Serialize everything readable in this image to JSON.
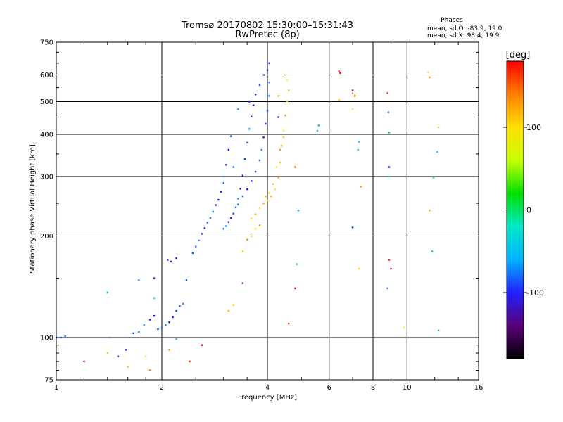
{
  "chart_data": {
    "type": "scatter",
    "title": "Tromsø 20170802 15:30:00–15:31:43",
    "subtitle": "RwPretec (8p)",
    "xlabel": "Frequency [MHz]",
    "ylabel": "Stationary phase Virtual Height [km]",
    "x_scale": "log",
    "y_scale": "log",
    "xlim": [
      1,
      16
    ],
    "ylim": [
      75,
      750
    ],
    "x_ticks": [
      1,
      2,
      4,
      6,
      8,
      10,
      16
    ],
    "y_ticks": [
      75,
      100,
      200,
      300,
      400,
      500,
      600,
      750
    ],
    "grid": true,
    "stats_header": "Phases",
    "stats_lines": [
      "mean, sd,O: -83.9, 19.0",
      "mean, sd,X:  98.4, 19.9"
    ],
    "colorbar": {
      "label": "[deg]",
      "range": [
        -180,
        180
      ],
      "ticks": [
        -100,
        0,
        100
      ],
      "colors": [
        "#000000",
        "#5a0078",
        "#2020ff",
        "#00b4ff",
        "#00e8c8",
        "#00e000",
        "#c8ff00",
        "#ffe000",
        "#ff8000",
        "#ff0000"
      ]
    },
    "series": [
      {
        "points": [
          [
            1.0,
            100
          ],
          [
            1.03,
            100
          ],
          [
            1.06,
            101
          ],
          [
            1.42,
            100
          ],
          [
            1.5,
            88
          ],
          [
            1.58,
            92
          ],
          [
            1.66,
            103
          ],
          [
            1.72,
            104
          ],
          [
            1.78,
            109
          ],
          [
            1.85,
            113
          ],
          [
            1.9,
            116
          ],
          [
            1.95,
            106
          ],
          [
            2.0,
            107
          ],
          [
            2.05,
            109
          ],
          [
            2.1,
            111
          ],
          [
            2.15,
            115
          ],
          [
            2.2,
            120
          ],
          [
            2.25,
            124
          ],
          [
            2.3,
            126
          ],
          [
            2.08,
            170
          ],
          [
            2.12,
            168
          ],
          [
            2.45,
            178
          ],
          [
            2.5,
            186
          ],
          [
            2.55,
            194
          ],
          [
            2.6,
            203
          ],
          [
            2.65,
            211
          ],
          [
            2.7,
            219
          ],
          [
            2.75,
            226
          ],
          [
            2.8,
            236
          ],
          [
            2.85,
            247
          ],
          [
            2.9,
            256
          ],
          [
            2.95,
            270
          ],
          [
            3.0,
            287
          ],
          [
            3.0,
            300
          ],
          [
            3.05,
            325
          ],
          [
            3.1,
            360
          ],
          [
            3.15,
            395
          ],
          [
            3.0,
            210
          ],
          [
            3.05,
            214
          ],
          [
            3.1,
            220
          ],
          [
            3.15,
            226
          ],
          [
            3.2,
            233
          ],
          [
            3.25,
            243
          ],
          [
            3.3,
            258
          ],
          [
            3.35,
            276
          ],
          [
            3.4,
            302
          ],
          [
            3.45,
            338
          ],
          [
            3.5,
            378
          ],
          [
            3.55,
            415
          ],
          [
            3.6,
            452
          ],
          [
            3.65,
            488
          ],
          [
            3.7,
            525
          ],
          [
            3.3,
            248
          ],
          [
            3.4,
            262
          ],
          [
            3.5,
            275
          ],
          [
            3.6,
            291
          ],
          [
            3.7,
            310
          ],
          [
            3.8,
            335
          ],
          [
            3.85,
            360
          ],
          [
            3.9,
            392
          ],
          [
            3.95,
            430
          ],
          [
            4.0,
            470
          ],
          [
            4.05,
            520
          ],
          [
            4.05,
            570
          ],
          [
            4.0,
            620
          ],
          [
            4.05,
            650
          ],
          [
            3.9,
            600
          ],
          [
            3.8,
            560
          ],
          [
            1.72,
            148
          ],
          [
            1.9,
            150
          ],
          [
            2.2,
            172
          ],
          [
            2.35,
            148
          ],
          [
            3.2,
            320
          ],
          [
            3.3,
            475
          ],
          [
            3.55,
            500
          ],
          [
            4.3,
            450
          ],
          [
            7.0,
            212
          ],
          [
            8.8,
            140
          ],
          [
            8.85,
            465
          ],
          [
            8.9,
            320
          ]
        ]
      },
      {
        "points": [
          [
            3.6,
            225
          ],
          [
            3.7,
            232
          ],
          [
            3.8,
            242
          ],
          [
            3.9,
            250
          ],
          [
            4.0,
            255
          ],
          [
            4.1,
            262
          ],
          [
            4.2,
            275
          ],
          [
            4.3,
            298
          ],
          [
            4.35,
            330
          ],
          [
            4.4,
            370
          ],
          [
            4.45,
            410
          ],
          [
            4.5,
            455
          ],
          [
            4.55,
            500
          ],
          [
            4.6,
            540
          ],
          [
            4.55,
            580
          ],
          [
            3.95,
            262
          ],
          [
            4.05,
            268
          ],
          [
            4.15,
            285
          ],
          [
            4.25,
            320
          ],
          [
            4.35,
            360
          ],
          [
            4.45,
            392
          ],
          [
            4.3,
            520
          ],
          [
            4.5,
            600
          ],
          [
            3.5,
            195
          ],
          [
            3.4,
            180
          ],
          [
            3.6,
            200
          ],
          [
            3.7,
            210
          ],
          [
            3.8,
            215
          ],
          [
            3.2,
            125
          ],
          [
            3.1,
            120
          ],
          [
            1.8,
            88
          ],
          [
            2.1,
            92
          ],
          [
            1.4,
            90
          ],
          [
            1.6,
            82
          ],
          [
            11.5,
            610
          ],
          [
            11.6,
            590
          ],
          [
            12.3,
            420
          ],
          [
            11.6,
            238
          ],
          [
            9.8,
            107
          ],
          [
            7.4,
            280
          ],
          [
            7.3,
            160
          ],
          [
            6.4,
            505
          ],
          [
            7.0,
            475
          ],
          [
            7.0,
            530
          ]
        ]
      },
      {
        "points": [
          [
            6.4,
            615
          ],
          [
            6.45,
            608
          ],
          [
            7.0,
            540
          ],
          [
            7.1,
            520
          ],
          [
            8.8,
            530
          ],
          [
            8.9,
            170
          ],
          [
            9.0,
            160
          ],
          [
            4.8,
            320
          ],
          [
            4.6,
            110
          ],
          [
            4.8,
            140
          ],
          [
            1.2,
            85
          ],
          [
            1.85,
            80
          ],
          [
            2.4,
            85
          ],
          [
            2.6,
            95
          ],
          [
            3.4,
            145
          ]
        ]
      },
      {
        "points": [
          [
            5.6,
            425
          ],
          [
            5.55,
            410
          ],
          [
            7.3,
            380
          ],
          [
            7.25,
            360
          ],
          [
            8.9,
            405
          ],
          [
            8.9,
            300
          ],
          [
            12.2,
            355
          ],
          [
            12.3,
            105
          ],
          [
            11.8,
            180
          ],
          [
            11.9,
            298
          ],
          [
            4.9,
            238
          ],
          [
            4.85,
            165
          ],
          [
            1.4,
            136
          ],
          [
            1.9,
            131
          ],
          [
            2.2,
            99
          ]
        ]
      }
    ]
  }
}
